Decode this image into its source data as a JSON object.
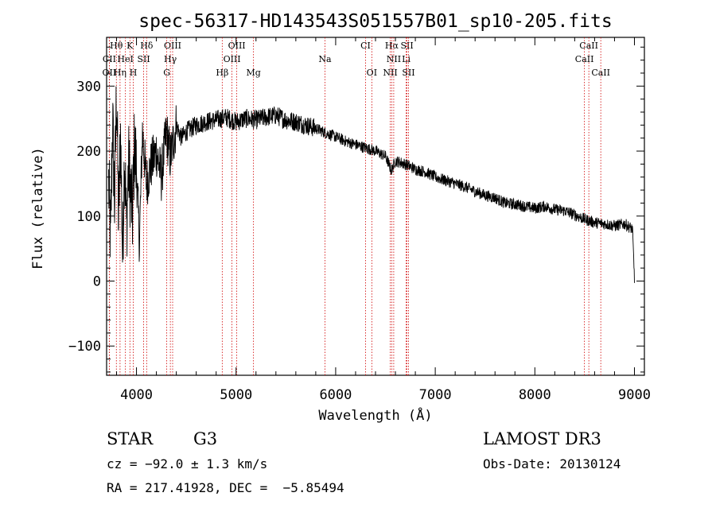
{
  "chart_data": {
    "type": "line",
    "title": "spec-56317-HD143543S051557B01_sp10-205.fits",
    "xlabel": "Wavelength (Å)",
    "ylabel": "Flux (relative)",
    "xlim": [
      3700,
      9100
    ],
    "ylim": [
      -145,
      375
    ],
    "x_ticks": [
      4000,
      5000,
      6000,
      7000,
      8000,
      9000
    ],
    "x_tick_labels": [
      "4000",
      "5000",
      "6000",
      "7000",
      "8000",
      "9000"
    ],
    "y_ticks": [
      -100,
      0,
      100,
      200,
      300
    ],
    "y_tick_labels": [
      "−100",
      "0",
      "100",
      "200",
      "300"
    ],
    "grid": false,
    "series": [
      {
        "name": "flux",
        "x": [
          3720,
          3740,
          3760,
          3780,
          3800,
          3820,
          3840,
          3860,
          3880,
          3900,
          3920,
          3940,
          3960,
          3980,
          4000,
          4030,
          4060,
          4100,
          4150,
          4200,
          4250,
          4300,
          4340,
          4400,
          4450,
          4500,
          4600,
          4700,
          4800,
          4900,
          5000,
          5100,
          5200,
          5300,
          5400,
          5500,
          5600,
          5700,
          5800,
          5900,
          6000,
          6100,
          6200,
          6300,
          6400,
          6500,
          6560,
          6600,
          6700,
          6800,
          6900,
          7000,
          7100,
          7200,
          7300,
          7400,
          7500,
          7600,
          7700,
          7800,
          7900,
          8000,
          8100,
          8200,
          8300,
          8400,
          8500,
          8600,
          8700,
          8800,
          8900,
          8980,
          9000
        ],
        "y": [
          150,
          60,
          250,
          120,
          300,
          90,
          230,
          40,
          200,
          80,
          180,
          140,
          100,
          210,
          170,
          60,
          230,
          150,
          180,
          200,
          160,
          230,
          190,
          240,
          220,
          230,
          240,
          245,
          248,
          252,
          245,
          250,
          248,
          252,
          255,
          248,
          245,
          240,
          235,
          228,
          222,
          215,
          210,
          205,
          200,
          192,
          170,
          185,
          180,
          172,
          168,
          160,
          155,
          150,
          145,
          138,
          132,
          128,
          120,
          118,
          115,
          112,
          115,
          110,
          108,
          102,
          95,
          90,
          88,
          85,
          88,
          80,
          5
        ]
      }
    ],
    "line_markers": [
      {
        "label": "Hθ",
        "wave": 3798,
        "row": 0
      },
      {
        "label": "K",
        "wave": 3934,
        "row": 0
      },
      {
        "label": "Hδ",
        "wave": 4102,
        "row": 0
      },
      {
        "label": "OIII",
        "wave": 4363,
        "row": 0
      },
      {
        "label": "OIII",
        "wave": 5007,
        "row": 0
      },
      {
        "label": "CI",
        "wave": 6300,
        "row": 0
      },
      {
        "label": "Hα",
        "wave": 6563,
        "row": 0
      },
      {
        "label": "SII",
        "wave": 6716,
        "row": 0
      },
      {
        "label": "CaII",
        "wave": 8542,
        "row": 0
      },
      {
        "label": "CII",
        "wave": 3727,
        "row": 1
      },
      {
        "label": "HeI",
        "wave": 3889,
        "row": 1
      },
      {
        "label": "SII",
        "wave": 4072,
        "row": 1
      },
      {
        "label": "Hγ",
        "wave": 4340,
        "row": 1
      },
      {
        "label": "OIII",
        "wave": 4959,
        "row": 1
      },
      {
        "label": "Na",
        "wave": 5893,
        "row": 1
      },
      {
        "label": "NII",
        "wave": 6583,
        "row": 1
      },
      {
        "label": "Li",
        "wave": 6708,
        "row": 1
      },
      {
        "label": "CaII",
        "wave": 8498,
        "row": 1
      },
      {
        "label": "OII",
        "wave": 3727,
        "row": 2
      },
      {
        "label": "Hη",
        "wave": 3835,
        "row": 2
      },
      {
        "label": "H",
        "wave": 3968,
        "row": 2
      },
      {
        "label": "G",
        "wave": 4304,
        "row": 2
      },
      {
        "label": "Hβ",
        "wave": 4861,
        "row": 2
      },
      {
        "label": "Mg",
        "wave": 5175,
        "row": 2
      },
      {
        "label": "OI",
        "wave": 6363,
        "row": 2
      },
      {
        "label": "NII",
        "wave": 6548,
        "row": 2
      },
      {
        "label": "SII",
        "wave": 6731,
        "row": 2
      },
      {
        "label": "CaII",
        "wave": 8662,
        "row": 2
      }
    ],
    "marker_color": "#d00000"
  },
  "info": {
    "object_class": "STAR",
    "subclass": "G3",
    "survey": "LAMOST DR3",
    "redshift": "cz = −92.0 ± 1.3 km/s",
    "obs_date": "Obs-Date: 20130124",
    "coords": "RA = 217.41928, DEC =  −5.85494"
  }
}
